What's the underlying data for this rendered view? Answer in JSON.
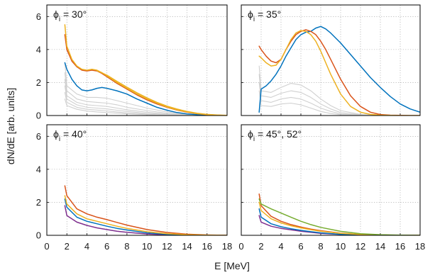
{
  "figure": {
    "xlabel": "E [MeV]",
    "ylabel": "dN/dE [arb. units]"
  },
  "chart_data": [
    {
      "type": "line",
      "title": "ϕi = 30°",
      "title_parts": [
        "ϕ",
        "i",
        " = 30°"
      ],
      "xlim": [
        0,
        18
      ],
      "ylim": [
        0,
        6.7
      ],
      "xticks": [
        "0",
        "2",
        "4",
        "6",
        "8",
        "10",
        "12",
        "14",
        "16",
        "18"
      ],
      "yticks": [
        "0",
        "2",
        "4",
        "6"
      ],
      "grid": true,
      "series": [
        {
          "color": "#d0d0d0",
          "group": "background",
          "x": [
            1.8,
            2,
            3,
            4,
            5,
            6,
            7,
            8,
            10,
            12,
            14,
            16,
            18
          ],
          "y": [
            3.2,
            1.8,
            1.3,
            1.1,
            1.1,
            1.05,
            0.9,
            0.75,
            0.45,
            0.22,
            0.08,
            0.02,
            0
          ]
        },
        {
          "color": "#d0d0d0",
          "group": "background",
          "x": [
            1.8,
            2,
            3,
            4,
            5,
            6,
            7,
            8,
            10,
            12,
            14,
            16,
            18
          ],
          "y": [
            2.6,
            1.5,
            1.0,
            0.85,
            0.8,
            0.75,
            0.65,
            0.5,
            0.3,
            0.14,
            0.05,
            0.01,
            0
          ]
        },
        {
          "color": "#d0d0d0",
          "group": "background",
          "x": [
            1.8,
            2,
            3,
            4,
            5,
            6,
            7,
            8,
            10,
            12,
            14,
            16,
            18
          ],
          "y": [
            2.2,
            1.2,
            0.8,
            0.65,
            0.6,
            0.55,
            0.45,
            0.35,
            0.2,
            0.09,
            0.03,
            0.01,
            0
          ]
        },
        {
          "color": "#d0d0d0",
          "group": "background",
          "x": [
            1.8,
            2,
            3,
            4,
            5,
            6,
            7,
            8,
            10,
            12,
            14,
            16,
            18
          ],
          "y": [
            1.8,
            1.0,
            0.65,
            0.5,
            0.45,
            0.4,
            0.32,
            0.25,
            0.13,
            0.06,
            0.02,
            0,
            0
          ]
        },
        {
          "color": "#d0d0d0",
          "group": "background",
          "x": [
            1.8,
            2,
            3,
            4,
            5,
            6,
            7,
            8,
            10,
            12,
            14,
            16,
            18
          ],
          "y": [
            1.4,
            0.8,
            0.5,
            0.38,
            0.33,
            0.28,
            0.22,
            0.16,
            0.08,
            0.03,
            0.01,
            0,
            0
          ]
        },
        {
          "color": "#d0d0d0",
          "group": "background",
          "x": [
            1.8,
            2,
            3,
            4,
            5,
            6,
            7,
            8,
            10,
            12,
            14,
            16,
            18
          ],
          "y": [
            1.0,
            0.6,
            0.38,
            0.27,
            0.22,
            0.18,
            0.14,
            0.1,
            0.05,
            0.02,
            0.01,
            0,
            0
          ]
        },
        {
          "color": "#0072bd",
          "x": [
            1.8,
            2,
            2.5,
            3,
            3.5,
            4,
            4.5,
            5,
            5.5,
            6,
            7,
            8,
            9,
            10,
            11,
            12,
            13,
            14,
            15,
            16,
            17,
            18
          ],
          "y": [
            3.2,
            2.8,
            2.2,
            1.8,
            1.55,
            1.5,
            1.55,
            1.65,
            1.7,
            1.65,
            1.5,
            1.3,
            1.0,
            0.75,
            0.5,
            0.32,
            0.18,
            0.1,
            0.05,
            0.02,
            0.01,
            0
          ]
        },
        {
          "color": "#d95319",
          "x": [
            1.8,
            2,
            2.5,
            3,
            3.5,
            4,
            4.5,
            5,
            5.5,
            6,
            7,
            8,
            9,
            10,
            11,
            12,
            13,
            14,
            15,
            16,
            17,
            18
          ],
          "y": [
            4.9,
            4.0,
            3.3,
            2.95,
            2.75,
            2.7,
            2.75,
            2.7,
            2.55,
            2.35,
            1.95,
            1.6,
            1.25,
            0.95,
            0.7,
            0.5,
            0.33,
            0.2,
            0.11,
            0.05,
            0.02,
            0
          ]
        },
        {
          "color": "#edb120",
          "x": [
            1.8,
            2,
            2.5,
            3,
            3.5,
            4,
            4.5,
            5,
            5.5,
            6,
            7,
            8,
            9,
            10,
            11,
            12,
            13,
            14,
            15,
            16,
            17,
            18
          ],
          "y": [
            5.5,
            4.2,
            3.4,
            3.0,
            2.8,
            2.75,
            2.8,
            2.75,
            2.6,
            2.4,
            2.0,
            1.65,
            1.3,
            1.0,
            0.75,
            0.52,
            0.35,
            0.22,
            0.12,
            0.06,
            0.02,
            0
          ]
        },
        {
          "color": "#edb120",
          "x": [
            5,
            6,
            7,
            8,
            9,
            10,
            11,
            12,
            13,
            14,
            15,
            16,
            17,
            18
          ],
          "y": [
            2.72,
            2.45,
            2.07,
            1.72,
            1.38,
            1.07,
            0.8,
            0.57,
            0.39,
            0.25,
            0.14,
            0.07,
            0.03,
            0.01
          ]
        }
      ]
    },
    {
      "type": "line",
      "title": "ϕi = 35°",
      "title_parts": [
        "ϕ",
        "i",
        " = 35°"
      ],
      "xlim": [
        0,
        18
      ],
      "ylim": [
        0,
        6.7
      ],
      "xticks": [
        "0",
        "2",
        "4",
        "6",
        "8",
        "10",
        "12",
        "14",
        "16",
        "18"
      ],
      "yticks": [
        "0",
        "2",
        "4",
        "6"
      ],
      "grid": true,
      "series": [
        {
          "color": "#d0d0d0",
          "group": "background",
          "x": [
            1.8,
            2,
            3,
            4,
            5,
            6,
            7,
            8,
            9,
            10,
            12,
            14
          ],
          "y": [
            3.0,
            1.5,
            1.4,
            1.7,
            1.95,
            1.85,
            1.5,
            1.0,
            0.6,
            0.3,
            0.07,
            0
          ]
        },
        {
          "color": "#d0d0d0",
          "group": "background",
          "x": [
            1.8,
            2,
            3,
            4,
            5,
            6,
            7,
            8,
            9,
            10,
            12,
            14
          ],
          "y": [
            2.5,
            1.2,
            1.1,
            1.35,
            1.5,
            1.4,
            1.1,
            0.7,
            0.4,
            0.18,
            0.04,
            0
          ]
        },
        {
          "color": "#d0d0d0",
          "group": "background",
          "x": [
            1.8,
            2,
            3,
            4,
            5,
            6,
            7,
            8,
            9,
            10,
            12,
            14
          ],
          "y": [
            2.0,
            0.9,
            0.8,
            1.0,
            1.1,
            1.0,
            0.75,
            0.45,
            0.25,
            0.1,
            0.02,
            0
          ]
        },
        {
          "color": "#d0d0d0",
          "group": "background",
          "x": [
            1.8,
            2,
            3,
            4,
            5,
            6,
            7,
            8,
            9,
            10,
            12,
            14
          ],
          "y": [
            1.5,
            0.6,
            0.55,
            0.7,
            0.75,
            0.65,
            0.45,
            0.25,
            0.12,
            0.05,
            0.01,
            0
          ]
        },
        {
          "color": "#0072bd",
          "x": [
            1.8,
            2,
            2.5,
            3,
            3.5,
            4,
            4.5,
            5,
            5.5,
            6,
            6.5,
            7,
            7.5,
            8,
            8.5,
            9,
            10,
            11,
            12,
            13,
            14,
            15,
            16,
            17,
            18
          ],
          "y": [
            0.2,
            1.6,
            1.8,
            2.1,
            2.5,
            3.0,
            3.6,
            4.1,
            4.6,
            4.9,
            5.05,
            5.1,
            5.3,
            5.4,
            5.25,
            5.0,
            4.4,
            3.7,
            3.0,
            2.3,
            1.7,
            1.15,
            0.7,
            0.4,
            0.2
          ]
        },
        {
          "color": "#d95319",
          "x": [
            1.8,
            2,
            2.5,
            3,
            3.5,
            4,
            4.5,
            5,
            5.5,
            6,
            6.5,
            7,
            7.5,
            8,
            8.5,
            9,
            10,
            11,
            12,
            13,
            14,
            15,
            16,
            17,
            18
          ],
          "y": [
            4.2,
            4.0,
            3.6,
            3.3,
            3.2,
            3.4,
            4.0,
            4.5,
            4.9,
            5.1,
            5.2,
            5.1,
            4.9,
            4.5,
            4.0,
            3.4,
            2.2,
            1.2,
            0.55,
            0.2,
            0.06,
            0.02,
            0.01,
            0,
            0
          ]
        },
        {
          "color": "#edb120",
          "x": [
            1.8,
            2,
            2.5,
            3,
            3.5,
            4,
            4.5,
            5,
            5.5,
            6,
            6.5,
            7,
            7.5,
            8,
            8.5,
            9,
            10,
            11,
            12,
            13,
            14,
            15,
            16,
            17,
            18
          ],
          "y": [
            3.6,
            3.5,
            3.2,
            3.0,
            3.05,
            3.4,
            4.0,
            4.6,
            5.0,
            5.15,
            5.1,
            4.9,
            4.5,
            3.9,
            3.2,
            2.5,
            1.3,
            0.55,
            0.2,
            0.07,
            0.02,
            0.01,
            0,
            0,
            0
          ]
        }
      ]
    },
    {
      "type": "line",
      "title": "ϕi = 40°",
      "title_parts": [
        "ϕ",
        "i",
        " = 40°"
      ],
      "xlim": [
        0,
        18
      ],
      "ylim": [
        0,
        6.7
      ],
      "xticks": [
        "0",
        "2",
        "4",
        "6",
        "8",
        "10",
        "12",
        "14",
        "16",
        "18"
      ],
      "yticks": [
        "0",
        "2",
        "4",
        "6"
      ],
      "grid": true,
      "series": [
        {
          "color": "#7e2f8e",
          "x": [
            1.8,
            2,
            3,
            4,
            5,
            6,
            7,
            8,
            10,
            12,
            14,
            16,
            18
          ],
          "y": [
            1.8,
            1.2,
            0.8,
            0.6,
            0.45,
            0.35,
            0.25,
            0.18,
            0.08,
            0.03,
            0.01,
            0,
            0
          ]
        },
        {
          "color": "#0072bd",
          "x": [
            1.8,
            2,
            3,
            4,
            5,
            6,
            7,
            8,
            10,
            12,
            14,
            16,
            18
          ],
          "y": [
            2.2,
            1.7,
            1.1,
            0.85,
            0.7,
            0.55,
            0.42,
            0.32,
            0.15,
            0.06,
            0.02,
            0,
            0
          ]
        },
        {
          "color": "#d95319",
          "x": [
            1.8,
            2,
            3,
            4,
            5,
            6,
            7,
            8,
            10,
            12,
            14,
            16,
            18
          ],
          "y": [
            3.0,
            2.4,
            1.6,
            1.3,
            1.1,
            0.95,
            0.78,
            0.62,
            0.35,
            0.17,
            0.07,
            0.02,
            0
          ]
        },
        {
          "color": "#edb120",
          "x": [
            1.8,
            2,
            3,
            4,
            5,
            6,
            7,
            8,
            10,
            12,
            14,
            16,
            18
          ],
          "y": [
            2.4,
            1.9,
            1.3,
            1.0,
            0.85,
            0.7,
            0.55,
            0.42,
            0.22,
            0.1,
            0.04,
            0.01,
            0
          ]
        }
      ]
    },
    {
      "type": "line",
      "title": "ϕi = 45°, 52°",
      "title_parts": [
        "ϕ",
        "i",
        " = 45°, 52°"
      ],
      "xlim": [
        0,
        18
      ],
      "ylim": [
        0,
        6.7
      ],
      "xticks": [
        "0",
        "2",
        "4",
        "6",
        "8",
        "10",
        "12",
        "14",
        "16",
        "18"
      ],
      "yticks": [
        "0",
        "2",
        "4",
        "6"
      ],
      "grid": true,
      "series": [
        {
          "color": "#7e2f8e",
          "x": [
            1.8,
            2,
            3,
            4,
            5,
            6,
            7,
            8,
            10,
            12,
            14,
            16,
            18
          ],
          "y": [
            1.2,
            0.8,
            0.55,
            0.42,
            0.33,
            0.25,
            0.18,
            0.12,
            0.05,
            0.02,
            0.01,
            0,
            0
          ]
        },
        {
          "color": "#0072bd",
          "x": [
            1.8,
            2,
            3,
            4,
            5,
            6,
            7,
            8,
            10,
            12,
            14,
            16,
            18
          ],
          "y": [
            1.6,
            1.1,
            0.7,
            0.52,
            0.4,
            0.3,
            0.22,
            0.15,
            0.06,
            0.02,
            0.01,
            0,
            0
          ]
        },
        {
          "color": "#d95319",
          "x": [
            1.8,
            2,
            3,
            4,
            5,
            6,
            7,
            8,
            10,
            12,
            14,
            16,
            18
          ],
          "y": [
            2.5,
            1.8,
            1.15,
            0.85,
            0.65,
            0.5,
            0.38,
            0.28,
            0.13,
            0.05,
            0.02,
            0,
            0
          ]
        },
        {
          "color": "#edb120",
          "x": [
            1.8,
            2,
            3,
            4,
            5,
            6,
            7,
            8,
            10,
            12,
            14,
            16,
            18
          ],
          "y": [
            2.0,
            1.5,
            1.0,
            0.75,
            0.58,
            0.45,
            0.34,
            0.25,
            0.12,
            0.05,
            0.02,
            0,
            0
          ]
        },
        {
          "color": "#77ac30",
          "x": [
            1.8,
            2,
            3,
            4,
            5,
            6,
            7,
            8,
            10,
            12,
            14,
            16,
            18
          ],
          "y": [
            2.2,
            1.9,
            1.6,
            1.35,
            1.1,
            0.85,
            0.65,
            0.48,
            0.24,
            0.1,
            0.04,
            0.01,
            0
          ]
        }
      ]
    }
  ]
}
